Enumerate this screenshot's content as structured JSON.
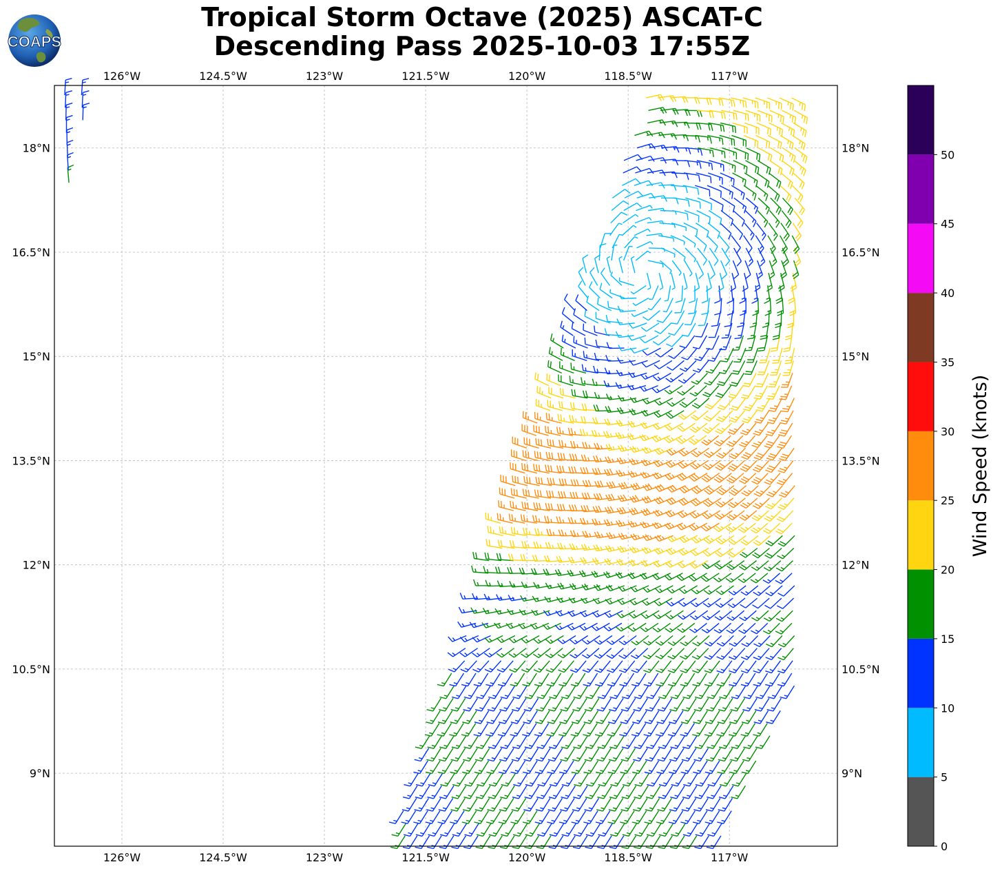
{
  "title": {
    "line1": "Tropical Storm Octave (2025) ASCAT-C",
    "line2": "Descending Pass 2025-10-03 17:55Z"
  },
  "logo": {
    "text": "COAPS"
  },
  "map": {
    "lon_range": [
      -127.0,
      -115.4
    ],
    "lat_range": [
      7.95,
      18.9
    ],
    "x_ticks": [
      {
        "value": -126.0,
        "label": "126°W"
      },
      {
        "value": -124.5,
        "label": "124.5°W"
      },
      {
        "value": -123.0,
        "label": "123°W"
      },
      {
        "value": -121.5,
        "label": "121.5°W"
      },
      {
        "value": -120.0,
        "label": "120°W"
      },
      {
        "value": -118.5,
        "label": "118.5°W"
      },
      {
        "value": -117.0,
        "label": "117°W"
      }
    ],
    "y_ticks": [
      {
        "value": 18.0,
        "label": "18°N"
      },
      {
        "value": 16.5,
        "label": "16.5°N"
      },
      {
        "value": 15.0,
        "label": "15°N"
      },
      {
        "value": 13.5,
        "label": "13.5°N"
      },
      {
        "value": 12.0,
        "label": "12°N"
      },
      {
        "value": 10.5,
        "label": "10.5°N"
      },
      {
        "value": 9.0,
        "label": "9°N"
      }
    ],
    "grid": true,
    "barb_spacing_deg": 0.18,
    "storm_center_approx": {
      "lon": -118.3,
      "lat": 16.2
    }
  },
  "colorbar": {
    "label": "Wind Speed (knots)",
    "bins": [
      {
        "from": 0,
        "to": 5,
        "color": "#555555"
      },
      {
        "from": 5,
        "to": 10,
        "color": "#00bbff"
      },
      {
        "from": 10,
        "to": 15,
        "color": "#0033ff"
      },
      {
        "from": 15,
        "to": 20,
        "color": "#009000"
      },
      {
        "from": 20,
        "to": 25,
        "color": "#ffd511"
      },
      {
        "from": 25,
        "to": 30,
        "color": "#ff8c0c"
      },
      {
        "from": 30,
        "to": 35,
        "color": "#ff0d0d"
      },
      {
        "from": 35,
        "to": 40,
        "color": "#7e3a22"
      },
      {
        "from": 40,
        "to": 45,
        "color": "#f50af5"
      },
      {
        "from": 45,
        "to": 50,
        "color": "#8000b0"
      },
      {
        "from": 50,
        "to": 55,
        "color": "#2b0058"
      }
    ],
    "tick_labels": [
      "0",
      "5",
      "10",
      "15",
      "20",
      "25",
      "30",
      "35",
      "40",
      "45",
      "50"
    ]
  }
}
